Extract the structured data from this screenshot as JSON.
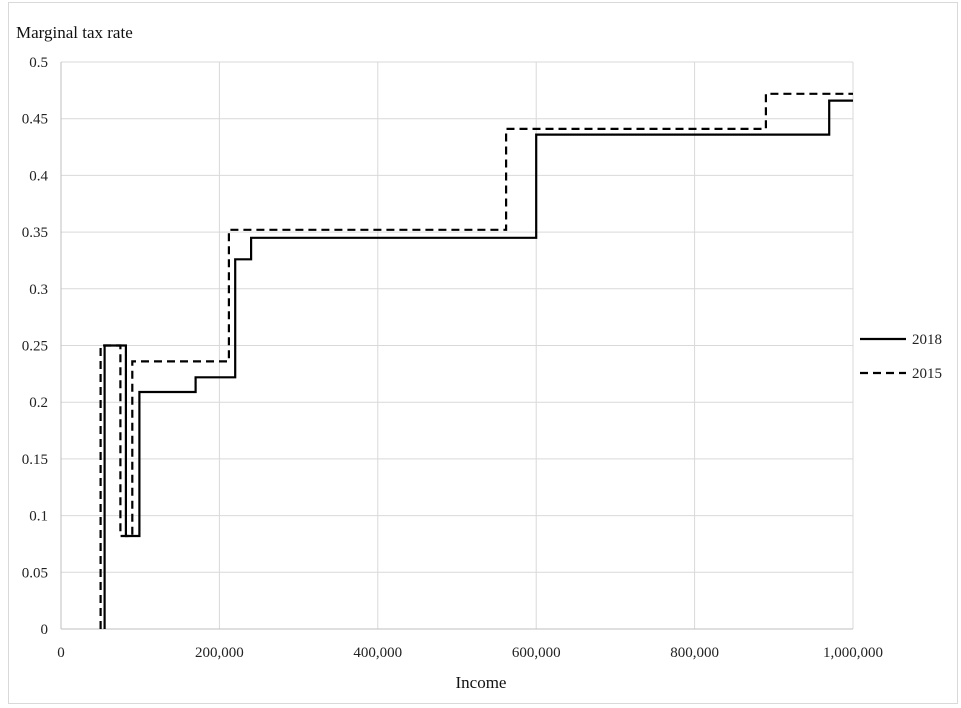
{
  "chart_data": {
    "type": "line",
    "step": true,
    "ylabel": "Marginal tax rate",
    "xlabel": "Income",
    "xlim": [
      0,
      1000000
    ],
    "ylim": [
      0,
      0.5
    ],
    "xticks": [
      0,
      200000,
      400000,
      600000,
      800000,
      1000000
    ],
    "xtick_labels": [
      "0",
      "200,000",
      "400,000",
      "600,000",
      "800,000",
      "1,000,000"
    ],
    "yticks": [
      0,
      0.05,
      0.1,
      0.15,
      0.2,
      0.25,
      0.3,
      0.35,
      0.4,
      0.45,
      0.5
    ],
    "ytick_labels": [
      "0",
      "0.05",
      "0.1",
      "0.15",
      "0.2",
      "0.25",
      "0.3",
      "0.35",
      "0.4",
      "0.45",
      "0.5"
    ],
    "grid": true,
    "legend_position": "right",
    "series": [
      {
        "name": "2018",
        "style": "solid",
        "color": "#000000",
        "x": [
          55000,
          55000,
          82000,
          82000,
          99000,
          99000,
          170000,
          170000,
          220000,
          220000,
          240000,
          240000,
          600000,
          600000,
          970000,
          970000,
          1000000
        ],
        "y": [
          0,
          0.25,
          0.25,
          0.082,
          0.082,
          0.209,
          0.209,
          0.222,
          0.222,
          0.326,
          0.326,
          0.345,
          0.345,
          0.436,
          0.436,
          0.466,
          0.466
        ]
      },
      {
        "name": "2015",
        "style": "dashed",
        "color": "#000000",
        "x": [
          50000,
          50000,
          75000,
          75000,
          90000,
          90000,
          212000,
          212000,
          562000,
          562000,
          890000,
          890000,
          1000000
        ],
        "y": [
          0,
          0.25,
          0.25,
          0.082,
          0.082,
          0.236,
          0.236,
          0.352,
          0.352,
          0.441,
          0.441,
          0.472,
          0.472
        ]
      }
    ]
  }
}
